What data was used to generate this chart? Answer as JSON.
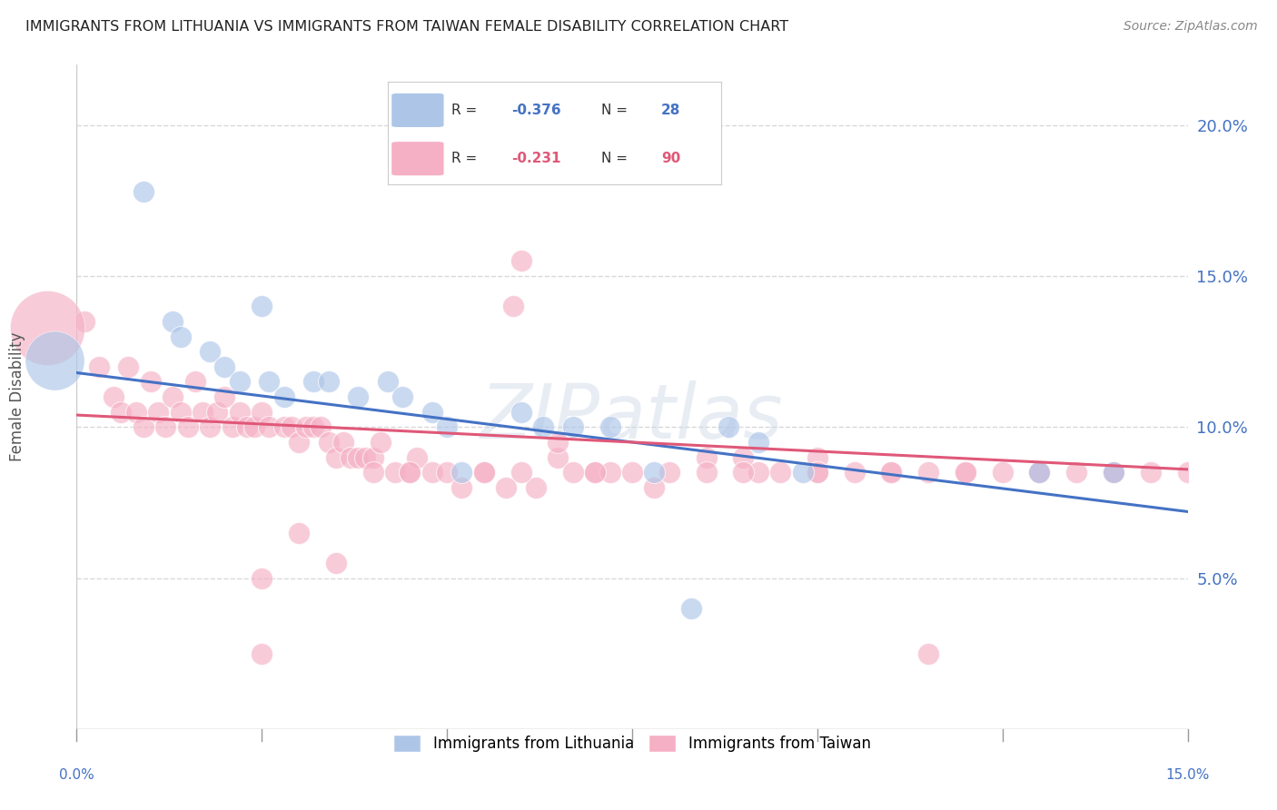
{
  "title": "IMMIGRANTS FROM LITHUANIA VS IMMIGRANTS FROM TAIWAN FEMALE DISABILITY CORRELATION CHART",
  "source": "Source: ZipAtlas.com",
  "ylabel": "Female Disability",
  "right_yticks": [
    "5.0%",
    "10.0%",
    "15.0%",
    "20.0%"
  ],
  "right_ytick_vals": [
    0.05,
    0.1,
    0.15,
    0.2
  ],
  "xlim": [
    0.0,
    0.15
  ],
  "ylim": [
    0.0,
    0.22
  ],
  "legend_r_blue": "-0.376",
  "legend_n_blue": "28",
  "legend_r_pink": "-0.231",
  "legend_n_pink": "90",
  "blue_color": "#adc6e8",
  "pink_color": "#f5b0c5",
  "blue_line_color": "#4472c4",
  "pink_line_color": "#e05878",
  "title_color": "#222222",
  "right_axis_color": "#4472c4",
  "grid_color": "#d8d8d8",
  "lithuania_x": [
    0.009,
    0.013,
    0.014,
    0.018,
    0.02,
    0.022,
    0.025,
    0.026,
    0.028,
    0.032,
    0.034,
    0.038,
    0.042,
    0.044,
    0.048,
    0.05,
    0.052,
    0.06,
    0.063,
    0.067,
    0.072,
    0.078,
    0.083,
    0.088,
    0.092,
    0.098,
    0.13,
    0.14
  ],
  "lithuania_y": [
    0.178,
    0.135,
    0.13,
    0.125,
    0.12,
    0.115,
    0.14,
    0.115,
    0.11,
    0.115,
    0.115,
    0.11,
    0.115,
    0.11,
    0.105,
    0.1,
    0.085,
    0.105,
    0.1,
    0.1,
    0.1,
    0.085,
    0.04,
    0.1,
    0.095,
    0.085,
    0.085,
    0.085
  ],
  "taiwan_x": [
    0.001,
    0.003,
    0.005,
    0.006,
    0.007,
    0.008,
    0.009,
    0.01,
    0.011,
    0.012,
    0.013,
    0.014,
    0.015,
    0.016,
    0.017,
    0.018,
    0.019,
    0.02,
    0.021,
    0.022,
    0.023,
    0.024,
    0.025,
    0.026,
    0.028,
    0.029,
    0.03,
    0.031,
    0.032,
    0.033,
    0.034,
    0.035,
    0.036,
    0.037,
    0.038,
    0.039,
    0.04,
    0.041,
    0.043,
    0.045,
    0.046,
    0.048,
    0.05,
    0.052,
    0.055,
    0.058,
    0.059,
    0.06,
    0.062,
    0.065,
    0.067,
    0.07,
    0.072,
    0.075,
    0.078,
    0.08,
    0.085,
    0.09,
    0.092,
    0.095,
    0.1,
    0.1,
    0.105,
    0.11,
    0.115,
    0.12,
    0.125,
    0.13,
    0.135,
    0.14,
    0.145,
    0.15,
    0.06,
    0.04,
    0.045,
    0.055,
    0.035,
    0.065,
    0.07,
    0.085,
    0.09,
    0.1,
    0.11,
    0.12,
    0.13,
    0.14,
    0.025,
    0.03,
    0.025,
    0.115
  ],
  "taiwan_y": [
    0.135,
    0.12,
    0.11,
    0.105,
    0.12,
    0.105,
    0.1,
    0.115,
    0.105,
    0.1,
    0.11,
    0.105,
    0.1,
    0.115,
    0.105,
    0.1,
    0.105,
    0.11,
    0.1,
    0.105,
    0.1,
    0.1,
    0.105,
    0.1,
    0.1,
    0.1,
    0.095,
    0.1,
    0.1,
    0.1,
    0.095,
    0.09,
    0.095,
    0.09,
    0.09,
    0.09,
    0.09,
    0.095,
    0.085,
    0.085,
    0.09,
    0.085,
    0.085,
    0.08,
    0.085,
    0.08,
    0.14,
    0.155,
    0.08,
    0.09,
    0.085,
    0.085,
    0.085,
    0.085,
    0.08,
    0.085,
    0.09,
    0.09,
    0.085,
    0.085,
    0.09,
    0.085,
    0.085,
    0.085,
    0.085,
    0.085,
    0.085,
    0.085,
    0.085,
    0.085,
    0.085,
    0.085,
    0.085,
    0.085,
    0.085,
    0.085,
    0.055,
    0.095,
    0.085,
    0.085,
    0.085,
    0.085,
    0.085,
    0.085,
    0.085,
    0.085,
    0.05,
    0.065,
    0.025,
    0.025
  ],
  "blue_line_x0": 0.0,
  "blue_line_y0": 0.118,
  "blue_line_x1": 0.15,
  "blue_line_y1": 0.072,
  "pink_line_x0": 0.0,
  "pink_line_y0": 0.104,
  "pink_line_x1": 0.15,
  "pink_line_y1": 0.086
}
